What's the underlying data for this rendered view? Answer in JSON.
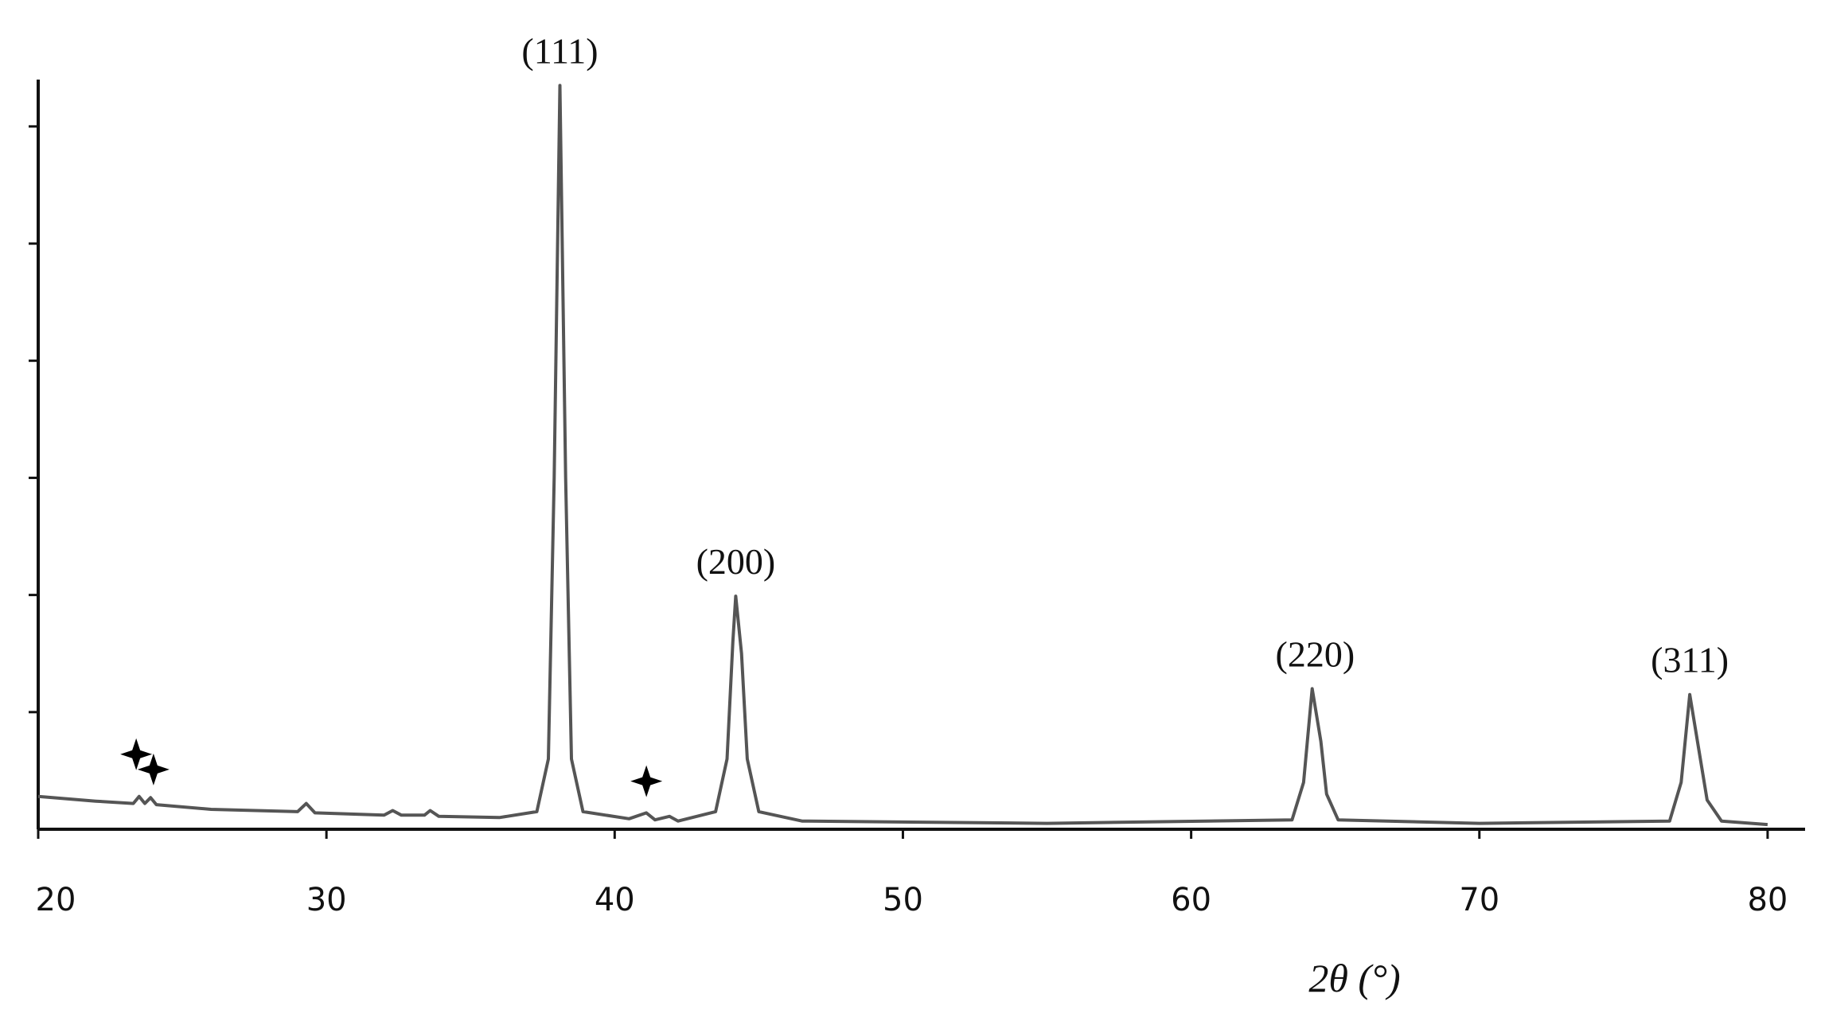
{
  "chart_data": {
    "type": "line",
    "x_label": "2θ (°)",
    "xlim": [
      20,
      81.3
    ],
    "xticks": [
      20,
      30,
      40,
      50,
      60,
      70,
      80
    ],
    "ylim": [
      0,
      6.4
    ],
    "yticks": [
      1,
      2,
      3,
      4,
      5,
      6
    ],
    "color": "#555555",
    "x": [
      20,
      22,
      23.3,
      23.5,
      23.7,
      23.9,
      24.1,
      26,
      29.0,
      29.3,
      29.6,
      32,
      32.3,
      32.6,
      33.4,
      33.6,
      33.9,
      36,
      37.3,
      37.7,
      37.9,
      38.1,
      38.3,
      38.5,
      38.9,
      40.5,
      41.1,
      41.4,
      41.9,
      42.2,
      43.5,
      43.9,
      44.1,
      44.2,
      44.4,
      44.6,
      45,
      46.5,
      55,
      63.5,
      63.9,
      64.2,
      64.5,
      64.7,
      65.1,
      70,
      76.6,
      77.0,
      77.3,
      77.6,
      77.9,
      78.4,
      80
    ],
    "values": [
      0.28,
      0.24,
      0.22,
      0.28,
      0.22,
      0.27,
      0.21,
      0.17,
      0.15,
      0.22,
      0.14,
      0.12,
      0.16,
      0.12,
      0.12,
      0.16,
      0.11,
      0.1,
      0.15,
      0.6,
      3.0,
      6.35,
      3.0,
      0.6,
      0.15,
      0.09,
      0.14,
      0.08,
      0.11,
      0.07,
      0.15,
      0.6,
      1.6,
      1.99,
      1.5,
      0.6,
      0.15,
      0.07,
      0.05,
      0.08,
      0.4,
      1.2,
      0.75,
      0.3,
      0.08,
      0.05,
      0.07,
      0.4,
      1.15,
      0.7,
      0.25,
      0.07,
      0.04
    ],
    "annotations": [
      {
        "text": "(111)",
        "x": 38.1,
        "y": 6.35
      },
      {
        "text": "(200)",
        "x": 44.2,
        "y": 1.99
      },
      {
        "text": "(220)",
        "x": 64.3,
        "y": 1.2
      },
      {
        "text": "(311)",
        "x": 77.3,
        "y": 1.15
      }
    ],
    "impurity_markers": {
      "x": [
        23.4,
        24.0,
        41.1
      ],
      "y": [
        0.64,
        0.51,
        0.41
      ]
    }
  }
}
